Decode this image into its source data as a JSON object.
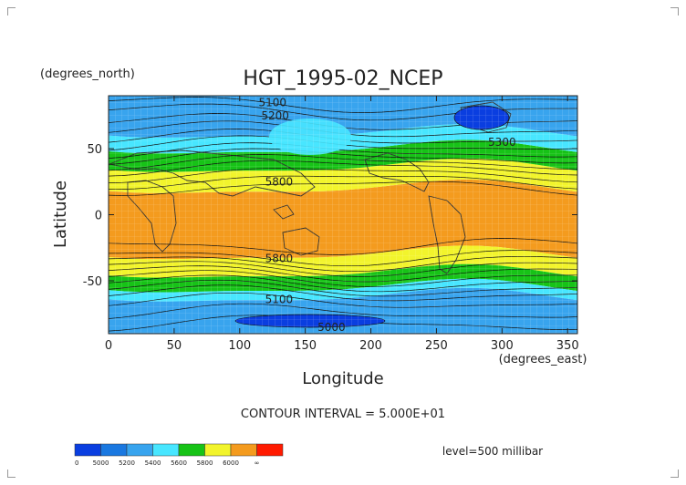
{
  "chart_data": {
    "type": "contour",
    "title": "HGT_1995-02_NCEP",
    "xlabel": "Longitude",
    "ylabel": "Latitude",
    "x_units": "(degrees_east)",
    "y_units": "(degrees_north)",
    "xlim": [
      0,
      357.5
    ],
    "ylim": [
      -90,
      90
    ],
    "x_ticks": [
      0,
      50,
      100,
      150,
      200,
      250,
      300,
      350
    ],
    "y_ticks": [
      -50,
      0,
      50
    ],
    "contour_interval_text": "CONTOUR INTERVAL = 5.000E+01",
    "level_text": "level=500 millibar",
    "contour_labels": [
      {
        "text": "5100",
        "lon": 125,
        "lat": 82
      },
      {
        "text": "5200",
        "lon": 127,
        "lat": 72
      },
      {
        "text": "5300",
        "lon": 300,
        "lat": 52
      },
      {
        "text": "5800",
        "lon": 130,
        "lat": 22
      },
      {
        "text": "5800",
        "lon": 130,
        "lat": -36
      },
      {
        "text": "5100",
        "lon": 130,
        "lat": -67
      },
      {
        "text": "5000",
        "lon": 170,
        "lat": -88
      }
    ],
    "colorbar": {
      "labels": [
        "0",
        "5000",
        "5200",
        "5400",
        "5600",
        "5800",
        "6000",
        "∞"
      ],
      "colors": [
        "#0a3ee0",
        "#1a78e0",
        "#38a4ee",
        "#48e6ff",
        "#17c317",
        "#f2f42c",
        "#f49b1e",
        "#ff1a00"
      ]
    },
    "bands": [
      {
        "color": "#f49b1e",
        "lat_top": 20,
        "lat_bottom": -30
      },
      {
        "color": "#f2f42c",
        "lat_top": 36,
        "lat_bottom": 20
      },
      {
        "color": "#17c317",
        "lat_top": 50,
        "lat_bottom": 36
      },
      {
        "color": "#48e6ff",
        "lat_top": 62,
        "lat_bottom": 50
      },
      {
        "color": "#38a4ee",
        "lat_top": 90,
        "lat_bottom": 62
      },
      {
        "color": "#f2f42c",
        "lat_top": -30,
        "lat_bottom": -44
      },
      {
        "color": "#17c317",
        "lat_top": -44,
        "lat_bottom": -55
      },
      {
        "color": "#48e6ff",
        "lat_top": -55,
        "lat_bottom": -62
      },
      {
        "color": "#38a4ee",
        "lat_top": -62,
        "lat_bottom": -90
      }
    ]
  }
}
